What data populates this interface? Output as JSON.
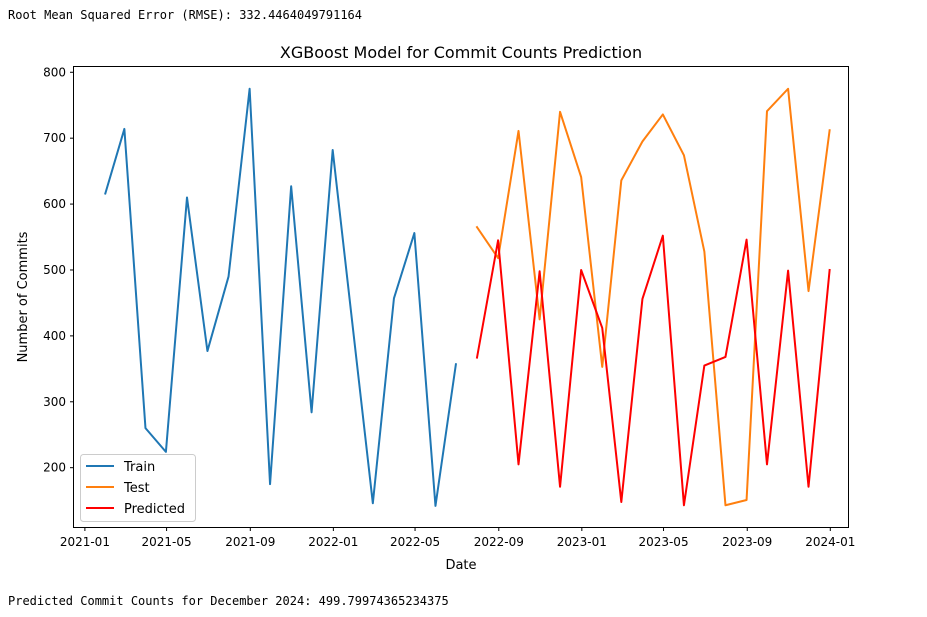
{
  "output_text": {
    "rmse": "Root Mean Squared Error (RMSE): 332.4464049791164",
    "prediction": "Predicted Commit Counts for December 2024: 499.79974365234375"
  },
  "chart_data": {
    "type": "line",
    "title": "XGBoost Model for Commit Counts Prediction",
    "xlabel": "Date",
    "ylabel": "Number of Commits",
    "xlim": [
      "2020-12-16",
      "2024-01-27"
    ],
    "ylim": [
      110,
      808
    ],
    "x_ticks": [
      "2021-01-01",
      "2021-05-01",
      "2021-09-01",
      "2022-01-01",
      "2022-05-01",
      "2022-09-01",
      "2023-01-01",
      "2023-05-01",
      "2023-09-01",
      "2024-01-01"
    ],
    "x_tick_labels": [
      "2021-01",
      "2021-05",
      "2021-09",
      "2022-01",
      "2022-05",
      "2022-09",
      "2023-01",
      "2023-05",
      "2023-09",
      "2024-01"
    ],
    "y_ticks": [
      200,
      300,
      400,
      500,
      600,
      700,
      800
    ],
    "grid": false,
    "legend": "lower-left",
    "series": [
      {
        "name": "Train",
        "color": "#1f77b4",
        "x": [
          "2021-01-31",
          "2021-02-28",
          "2021-03-31",
          "2021-04-30",
          "2021-05-31",
          "2021-06-30",
          "2021-07-31",
          "2021-08-31",
          "2021-09-30",
          "2021-10-31",
          "2021-11-30",
          "2021-12-31",
          "2022-01-31",
          "2022-02-28",
          "2022-03-31",
          "2022-04-30",
          "2022-05-31",
          "2022-06-30"
        ],
        "values": [
          616,
          714,
          260,
          224,
          610,
          377,
          490,
          775,
          175,
          627,
          284,
          682,
          400,
          146,
          457,
          556,
          142,
          357
        ]
      },
      {
        "name": "Test",
        "color": "#ff7f0e",
        "x": [
          "2022-07-31",
          "2022-08-31",
          "2022-09-30",
          "2022-10-31",
          "2022-11-30",
          "2022-12-31",
          "2023-01-31",
          "2023-02-28",
          "2023-03-31",
          "2023-04-30",
          "2023-05-31",
          "2023-06-30",
          "2023-07-31",
          "2023-08-31",
          "2023-09-30",
          "2023-10-31",
          "2023-11-30",
          "2023-12-31"
        ],
        "values": [
          565,
          518,
          711,
          425,
          740,
          641,
          353,
          636,
          695,
          736,
          674,
          528,
          143,
          151,
          741,
          775,
          468,
          712
        ]
      },
      {
        "name": "Predicted",
        "color": "#ff0000",
        "x": [
          "2022-07-31",
          "2022-08-31",
          "2022-09-30",
          "2022-10-31",
          "2022-11-30",
          "2022-12-31",
          "2023-01-31",
          "2023-02-28",
          "2023-03-31",
          "2023-04-30",
          "2023-05-31",
          "2023-06-30",
          "2023-07-31",
          "2023-08-31",
          "2023-09-30",
          "2023-10-31",
          "2023-11-30",
          "2023-12-31"
        ],
        "values": [
          367,
          545,
          205,
          498,
          171,
          500,
          412,
          148,
          456,
          552,
          143,
          355,
          368,
          546,
          205,
          499,
          171,
          500
        ]
      }
    ]
  }
}
